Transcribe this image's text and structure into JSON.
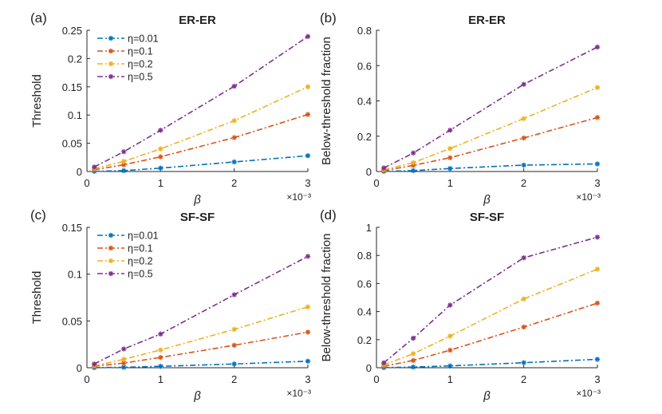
{
  "colors": {
    "blue": "#0072BD",
    "orange": "#D95319",
    "yellow": "#EDB120",
    "purple": "#7E2F8E"
  },
  "chart_data": [
    {
      "type": "line",
      "panel_label": "(a)",
      "title": "ER-ER",
      "xlabel": "β",
      "ylabel": "Threshold",
      "x_multiplier": "×10⁻³",
      "xlim": [
        0,
        3
      ],
      "ylim": [
        0,
        0.25
      ],
      "xticks": [
        "0",
        "1",
        "2",
        "3"
      ],
      "yticks": [
        "0",
        "0.05",
        "0.1",
        "0.15",
        "0.2",
        "0.25"
      ],
      "legend": "top-left",
      "x": [
        0.1,
        0.5,
        1,
        2,
        3
      ],
      "series": [
        {
          "name": "η=0.01",
          "color": "#0072BD",
          "values": [
            0.0003,
            0.0015,
            0.006,
            0.017,
            0.028
          ]
        },
        {
          "name": "η=0.1",
          "color": "#D95319",
          "values": [
            0.003,
            0.012,
            0.026,
            0.06,
            0.101
          ]
        },
        {
          "name": "η=0.2",
          "color": "#EDB120",
          "values": [
            0.005,
            0.018,
            0.04,
            0.09,
            0.15
          ]
        },
        {
          "name": "η=0.5",
          "color": "#7E2F8E",
          "values": [
            0.008,
            0.035,
            0.073,
            0.151,
            0.239
          ]
        }
      ]
    },
    {
      "type": "line",
      "panel_label": "(b)",
      "title": "ER-ER",
      "xlabel": "β",
      "ylabel": "Below-threshold fraction",
      "x_multiplier": "×10⁻³",
      "xlim": [
        0,
        3
      ],
      "ylim": [
        0,
        0.8
      ],
      "xticks": [
        "0",
        "1",
        "2",
        "3"
      ],
      "yticks": [
        "0",
        "0.2",
        "0.4",
        "0.6",
        "0.8"
      ],
      "x": [
        0.1,
        0.5,
        1,
        2,
        3
      ],
      "series": [
        {
          "color": "#0072BD",
          "values": [
            0.001,
            0.005,
            0.017,
            0.036,
            0.043
          ]
        },
        {
          "color": "#D95319",
          "values": [
            0.005,
            0.035,
            0.078,
            0.19,
            0.306
          ]
        },
        {
          "color": "#EDB120",
          "values": [
            0.01,
            0.05,
            0.13,
            0.3,
            0.476
          ]
        },
        {
          "color": "#7E2F8E",
          "values": [
            0.02,
            0.105,
            0.234,
            0.494,
            0.705
          ]
        }
      ]
    },
    {
      "type": "line",
      "panel_label": "(c)",
      "title": "SF-SF",
      "xlabel": "β",
      "ylabel": "Threshold",
      "x_multiplier": "×10⁻³",
      "xlim": [
        0,
        3
      ],
      "ylim": [
        0,
        0.15
      ],
      "xticks": [
        "0",
        "1",
        "2",
        "3"
      ],
      "yticks": [
        "0",
        "0.05",
        "0.1",
        "0.15"
      ],
      "legend": "top-left",
      "x": [
        0.1,
        0.5,
        1,
        2,
        3
      ],
      "series": [
        {
          "name": "η=0.01",
          "color": "#0072BD",
          "values": [
            0.0001,
            0.0005,
            0.0015,
            0.004,
            0.007
          ]
        },
        {
          "name": "η=0.1",
          "color": "#D95319",
          "values": [
            0.0015,
            0.005,
            0.011,
            0.024,
            0.038
          ]
        },
        {
          "name": "η=0.2",
          "color": "#EDB120",
          "values": [
            0.002,
            0.009,
            0.019,
            0.041,
            0.065
          ]
        },
        {
          "name": "η=0.5",
          "color": "#7E2F8E",
          "values": [
            0.004,
            0.02,
            0.036,
            0.078,
            0.119
          ]
        }
      ]
    },
    {
      "type": "line",
      "panel_label": "(d)",
      "title": "SF-SF",
      "xlabel": "β",
      "ylabel": "Below-threshold fraction",
      "x_multiplier": "×10⁻³",
      "xlim": [
        0,
        3
      ],
      "ylim": [
        0,
        1
      ],
      "xticks": [
        "0",
        "1",
        "2",
        "3"
      ],
      "yticks": [
        "0",
        "0.2",
        "0.4",
        "0.6",
        "0.8",
        "1"
      ],
      "x": [
        0.1,
        0.5,
        1,
        2,
        3
      ],
      "series": [
        {
          "color": "#0072BD",
          "values": [
            0.001,
            0.005,
            0.013,
            0.036,
            0.06
          ]
        },
        {
          "color": "#D95319",
          "values": [
            0.01,
            0.052,
            0.125,
            0.29,
            0.46
          ]
        },
        {
          "color": "#EDB120",
          "values": [
            0.02,
            0.1,
            0.225,
            0.49,
            0.702
          ]
        },
        {
          "color": "#7E2F8E",
          "values": [
            0.035,
            0.21,
            0.446,
            0.783,
            0.93
          ]
        }
      ]
    }
  ]
}
